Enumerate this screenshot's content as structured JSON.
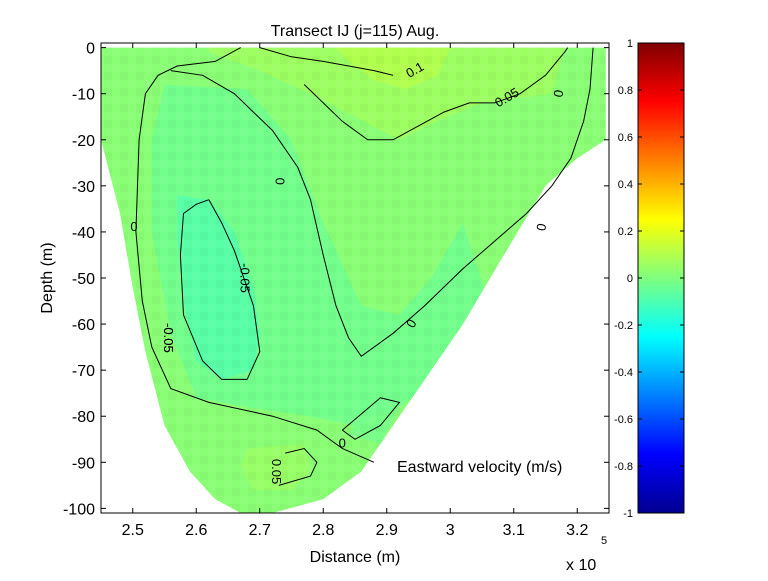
{
  "chart_data": {
    "type": "heatmap",
    "title": "Transect IJ  (j=115)  Aug.",
    "xlabel": "Distance (m)",
    "ylabel": "Depth (m)",
    "x_exponent_label": "x 10",
    "x_exponent_power": "5",
    "xlim": [
      2.45,
      3.25
    ],
    "ylim": [
      -101,
      1
    ],
    "x_ticks": [
      {
        "value": 2.5,
        "label": "2.5"
      },
      {
        "value": 2.6,
        "label": "2.6"
      },
      {
        "value": 2.7,
        "label": "2.7"
      },
      {
        "value": 2.8,
        "label": "2.8"
      },
      {
        "value": 2.9,
        "label": "2.9"
      },
      {
        "value": 3.0,
        "label": "3"
      },
      {
        "value": 3.1,
        "label": "3.1"
      },
      {
        "value": 3.2,
        "label": "3.2"
      }
    ],
    "y_ticks": [
      {
        "value": 0,
        "label": "0"
      },
      {
        "value": -10,
        "label": "-10"
      },
      {
        "value": -20,
        "label": "-20"
      },
      {
        "value": -30,
        "label": "-30"
      },
      {
        "value": -40,
        "label": "-40"
      },
      {
        "value": -50,
        "label": "-50"
      },
      {
        "value": -60,
        "label": "-60"
      },
      {
        "value": -70,
        "label": "-70"
      },
      {
        "value": -80,
        "label": "-80"
      },
      {
        "value": -90,
        "label": "-90"
      },
      {
        "value": -100,
        "label": "-100"
      }
    ],
    "colorbar": {
      "range": [
        -1,
        1
      ],
      "colormap": "jet",
      "ticks": [
        {
          "value": 1,
          "label": "1"
        },
        {
          "value": 0.8,
          "label": "0.8"
        },
        {
          "value": 0.6,
          "label": "0.6"
        },
        {
          "value": 0.4,
          "label": "0.4"
        },
        {
          "value": 0.2,
          "label": "0.2"
        },
        {
          "value": 0,
          "label": "0"
        },
        {
          "value": -0.2,
          "label": "-0.2"
        },
        {
          "value": -0.4,
          "label": "-0.4"
        },
        {
          "value": -0.6,
          "label": "-0.6"
        },
        {
          "value": -0.8,
          "label": "-0.8"
        },
        {
          "value": -1,
          "label": "-1"
        }
      ]
    },
    "colorbar_label": "Eastward velocity (m/s)",
    "section_outline": [
      [
        2.45,
        0
      ],
      [
        3.245,
        0
      ],
      [
        3.245,
        -20
      ],
      [
        3.2,
        -24
      ],
      [
        3.15,
        -30
      ],
      [
        3.08,
        -46
      ],
      [
        3.02,
        -60
      ],
      [
        2.95,
        -74
      ],
      [
        2.9,
        -84
      ],
      [
        2.86,
        -92
      ],
      [
        2.8,
        -98
      ],
      [
        2.72,
        -101
      ],
      [
        2.67,
        -101
      ],
      [
        2.63,
        -98
      ],
      [
        2.59,
        -92
      ],
      [
        2.55,
        -82
      ],
      [
        2.52,
        -66
      ],
      [
        2.5,
        -52
      ],
      [
        2.48,
        -36
      ],
      [
        2.465,
        -28
      ],
      [
        2.45,
        -20
      ]
    ],
    "field_regions": [
      {
        "value": 0.06,
        "polygon": [
          [
            2.62,
            0
          ],
          [
            3.18,
            0
          ],
          [
            3.16,
            -10
          ],
          [
            3.05,
            -12
          ],
          [
            2.98,
            -16
          ],
          [
            2.92,
            -20
          ],
          [
            2.85,
            -15
          ],
          [
            2.78,
            -10
          ],
          [
            2.7,
            -5
          ],
          [
            2.62,
            -1
          ]
        ]
      },
      {
        "value": 0.1,
        "polygon": [
          [
            2.82,
            0
          ],
          [
            3.0,
            0
          ],
          [
            2.98,
            -6
          ],
          [
            2.93,
            -9
          ],
          [
            2.88,
            -7
          ],
          [
            2.84,
            -3
          ]
        ]
      },
      {
        "value": 0.05,
        "polygon": [
          [
            2.68,
            -87
          ],
          [
            2.77,
            -86
          ],
          [
            2.78,
            -92
          ],
          [
            2.75,
            -96
          ],
          [
            2.69,
            -96
          ],
          [
            2.67,
            -91
          ]
        ]
      },
      {
        "value": -0.03,
        "polygon": [
          [
            2.55,
            -8
          ],
          [
            2.68,
            -9
          ],
          [
            2.75,
            -20
          ],
          [
            2.8,
            -38
          ],
          [
            2.86,
            -56
          ],
          [
            2.92,
            -58
          ],
          [
            2.97,
            -50
          ],
          [
            3.02,
            -38
          ],
          [
            3.06,
            -55
          ],
          [
            3.0,
            -70
          ],
          [
            2.92,
            -78
          ],
          [
            2.85,
            -82
          ],
          [
            2.78,
            -80
          ],
          [
            2.68,
            -78
          ],
          [
            2.6,
            -76
          ],
          [
            2.56,
            -62
          ],
          [
            2.53,
            -40
          ],
          [
            2.53,
            -20
          ]
        ]
      },
      {
        "value": -0.08,
        "polygon": [
          [
            2.57,
            -32
          ],
          [
            2.62,
            -33
          ],
          [
            2.66,
            -40
          ],
          [
            2.69,
            -52
          ],
          [
            2.7,
            -62
          ],
          [
            2.69,
            -70
          ],
          [
            2.64,
            -72
          ],
          [
            2.6,
            -68
          ],
          [
            2.58,
            -55
          ],
          [
            2.57,
            -42
          ]
        ]
      },
      {
        "value": -0.02,
        "polygon": [
          [
            2.86,
            -80
          ],
          [
            2.92,
            -78
          ],
          [
            2.89,
            -86
          ],
          [
            2.84,
            -84
          ]
        ]
      }
    ],
    "contours": [
      {
        "level": "0.1",
        "label": "0.1",
        "label_at": [
          2.945,
          -5
        ],
        "label_angle": -30,
        "points": [
          [
            2.7,
            0
          ],
          [
            2.75,
            -2
          ],
          [
            2.8,
            -3
          ],
          [
            2.84,
            -4
          ],
          [
            2.88,
            -5
          ],
          [
            2.91,
            -6
          ]
        ]
      },
      {
        "level": "0.05",
        "label": "0.05",
        "label_at": [
          3.09,
          -11
        ],
        "label_angle": -30,
        "points": [
          [
            2.77,
            -8
          ],
          [
            2.8,
            -12
          ],
          [
            2.83,
            -16
          ],
          [
            2.87,
            -20
          ],
          [
            2.91,
            -20
          ],
          [
            2.95,
            -17
          ],
          [
            2.99,
            -14
          ],
          [
            3.03,
            -12
          ],
          [
            3.07,
            -12
          ],
          [
            3.11,
            -10
          ],
          [
            3.15,
            -6
          ],
          [
            3.18,
            -1
          ],
          [
            3.185,
            0
          ]
        ]
      },
      {
        "level": "0.05",
        "label": "0.05",
        "label_at": [
          2.725,
          -92
        ],
        "label_angle": 90,
        "points": [
          [
            2.74,
            -88
          ],
          [
            2.77,
            -87
          ],
          [
            2.79,
            -90
          ],
          [
            2.78,
            -93
          ],
          [
            2.73,
            -95
          ]
        ]
      },
      {
        "level": "0",
        "label": "0",
        "label_at": [
          2.73,
          -29
        ],
        "label_angle": 90,
        "points": [
          [
            2.67,
            0
          ],
          [
            2.63,
            -3
          ],
          [
            2.57,
            -4
          ],
          [
            2.54,
            -6
          ],
          [
            2.52,
            -10
          ],
          [
            2.51,
            -20
          ],
          [
            2.505,
            -40
          ],
          [
            2.515,
            -55
          ],
          [
            2.53,
            -65
          ],
          [
            2.56,
            -74
          ],
          [
            2.62,
            -77
          ],
          [
            2.72,
            -80
          ],
          [
            2.79,
            -83
          ],
          [
            2.83,
            -87
          ],
          [
            2.88,
            -90
          ]
        ]
      },
      {
        "level": "0",
        "label": "0",
        "label_at": [
          2.94,
          -60
        ],
        "label_angle": -60,
        "points": [
          [
            2.56,
            -5
          ],
          [
            2.61,
            -6
          ],
          [
            2.66,
            -10
          ],
          [
            2.72,
            -18
          ],
          [
            2.76,
            -26
          ],
          [
            2.78,
            -33
          ],
          [
            2.8,
            -45
          ],
          [
            2.82,
            -56
          ],
          [
            2.84,
            -63
          ],
          [
            2.86,
            -67
          ],
          [
            2.91,
            -62
          ],
          [
            2.96,
            -56
          ],
          [
            3.02,
            -48
          ],
          [
            3.07,
            -42
          ],
          [
            3.12,
            -36
          ],
          [
            3.16,
            -30
          ],
          [
            3.19,
            -24
          ],
          [
            3.21,
            -16
          ],
          [
            3.22,
            -9
          ],
          [
            3.225,
            0
          ]
        ]
      },
      {
        "level": "0",
        "label": "",
        "label_at": null,
        "label_angle": 0,
        "points": [
          [
            2.83,
            -83
          ],
          [
            2.89,
            -76
          ],
          [
            2.92,
            -77
          ],
          [
            2.89,
            -82
          ],
          [
            2.85,
            -85
          ],
          [
            2.83,
            -83
          ]
        ]
      },
      {
        "level": "-0.05",
        "label": "-0.05",
        "label_at": [
          2.675,
          -50
        ],
        "label_angle": 90,
        "points": [
          [
            2.62,
            -33
          ],
          [
            2.6,
            -34
          ],
          [
            2.58,
            -36
          ],
          [
            2.575,
            -45
          ],
          [
            2.58,
            -58
          ],
          [
            2.61,
            -68
          ],
          [
            2.64,
            -72
          ],
          [
            2.68,
            -72
          ],
          [
            2.7,
            -66
          ],
          [
            2.69,
            -56
          ],
          [
            2.66,
            -44
          ],
          [
            2.64,
            -38
          ],
          [
            2.62,
            -33
          ]
        ]
      },
      {
        "level": "-0.05",
        "label": "-0.05",
        "label_at": [
          2.555,
          -63
        ],
        "label_angle": 90,
        "points": []
      }
    ],
    "extra_contour_labels": [
      {
        "label": "0",
        "at": [
          2.502,
          -39
        ],
        "angle": 0
      },
      {
        "label": "0",
        "at": [
          3.172,
          -10
        ],
        "angle": -80
      },
      {
        "label": "0",
        "at": [
          3.145,
          -39
        ],
        "angle": -80
      },
      {
        "label": "0",
        "at": [
          2.83,
          -86
        ],
        "angle": 0
      }
    ]
  }
}
